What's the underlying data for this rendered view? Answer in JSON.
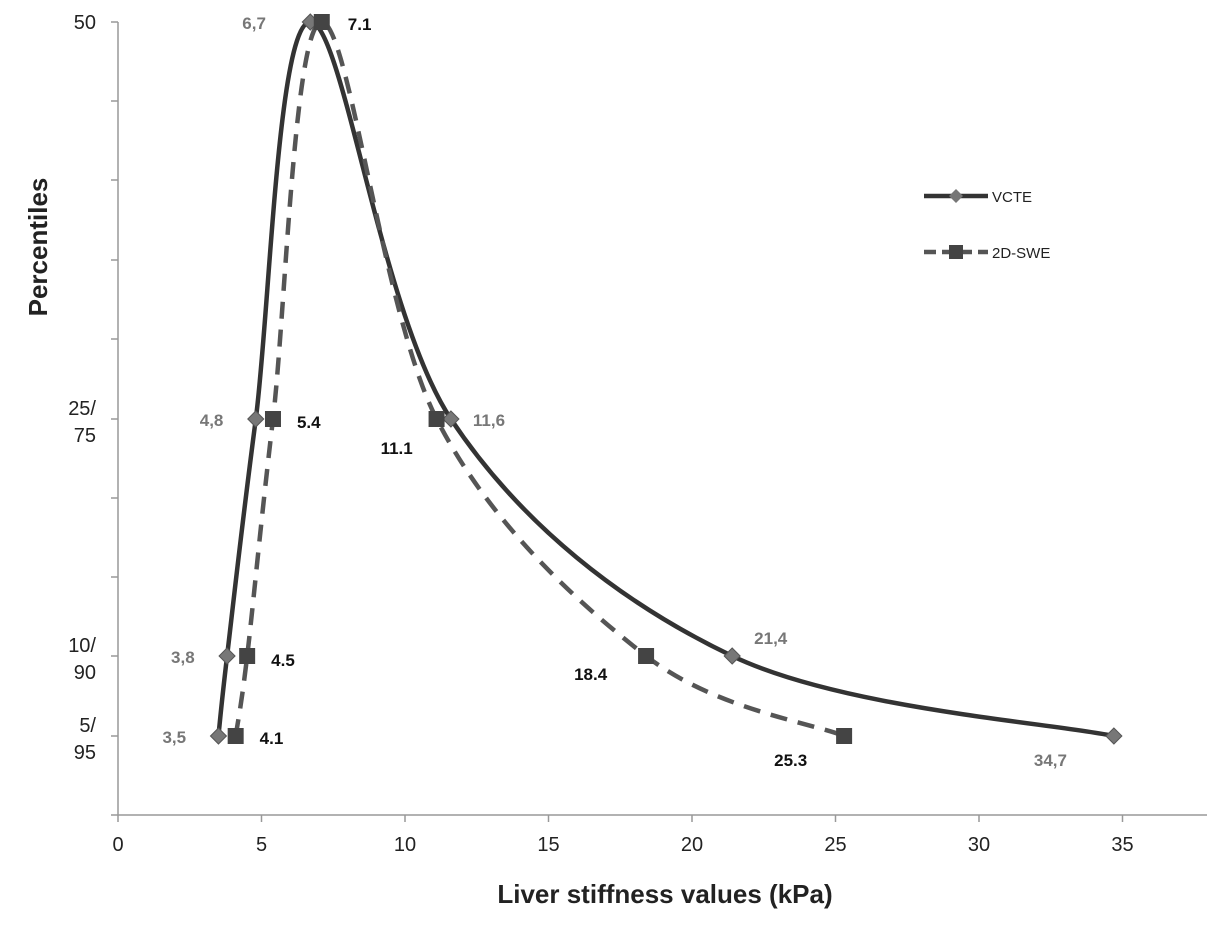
{
  "chart_data": {
    "type": "line",
    "title": "",
    "xlabel": "Liver stiffness values (kPa)",
    "ylabel": "Percentiles",
    "xlim": [
      0,
      38
    ],
    "xticks": [
      0,
      5,
      10,
      15,
      20,
      25,
      30,
      35
    ],
    "grid": false,
    "legend": "right",
    "y_levels": [
      {
        "id": "p5_95",
        "lines": [
          "5/",
          "95"
        ]
      },
      {
        "id": "p10_90",
        "lines": [
          "10/",
          "90"
        ]
      },
      {
        "id": "p25_75",
        "lines": [
          "25/",
          "75"
        ]
      },
      {
        "id": "p50",
        "lines": [
          "50"
        ]
      }
    ],
    "series": [
      {
        "name": "VCTE",
        "style": "solid",
        "marker": "diamond",
        "color": "#333333",
        "marker_color": "#777777",
        "label_color": "#777777",
        "points": [
          {
            "x": 3.5,
            "level": "p5_95",
            "label": "3,5"
          },
          {
            "x": 3.8,
            "level": "p10_90",
            "label": "3,8"
          },
          {
            "x": 4.8,
            "level": "p25_75",
            "label": "4,8"
          },
          {
            "x": 6.7,
            "level": "p50",
            "label": "6,7"
          },
          {
            "x": 11.6,
            "level": "p25_75",
            "label": "11,6"
          },
          {
            "x": 21.4,
            "level": "p10_90",
            "label": "21,4"
          },
          {
            "x": 34.7,
            "level": "p5_95",
            "label": "34,7"
          }
        ]
      },
      {
        "name": "2D-SWE",
        "style": "dashed",
        "marker": "square",
        "color": "#555555",
        "marker_color": "#444444",
        "label_color": "#111111",
        "points": [
          {
            "x": 4.1,
            "level": "p5_95",
            "label": "4.1"
          },
          {
            "x": 4.5,
            "level": "p10_90",
            "label": "4.5"
          },
          {
            "x": 5.4,
            "level": "p25_75",
            "label": "5.4"
          },
          {
            "x": 7.1,
            "level": "p50",
            "label": "7.1"
          },
          {
            "x": 11.1,
            "level": "p25_75",
            "label": "11.1"
          },
          {
            "x": 18.4,
            "level": "p10_90",
            "label": "18.4"
          },
          {
            "x": 25.3,
            "level": "p5_95",
            "label": "25.3"
          }
        ]
      }
    ]
  }
}
